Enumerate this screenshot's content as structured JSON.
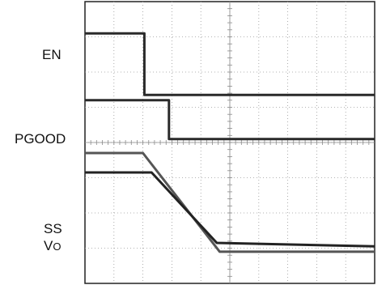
{
  "chart_data": {
    "type": "line",
    "title": "",
    "xlabel": "",
    "ylabel": "",
    "grid": true,
    "x_divisions": 10,
    "y_divisions": 8,
    "channel_labels": [
      {
        "id": "en",
        "text": "EN"
      },
      {
        "id": "pgood",
        "text": "PGOOD"
      },
      {
        "id": "ss",
        "text": "SS"
      },
      {
        "id": "vo",
        "text": "V",
        "sub": "O"
      }
    ],
    "series": [
      {
        "name": "EN",
        "color": "#2a2a2a",
        "points": [
          [
            0,
            7.1
          ],
          [
            2.05,
            7.1
          ],
          [
            2.05,
            5.35
          ],
          [
            10,
            5.35
          ]
        ]
      },
      {
        "name": "PGOOD",
        "color": "#2a2a2a",
        "points": [
          [
            0,
            5.2
          ],
          [
            2.9,
            5.2
          ],
          [
            2.9,
            4.1
          ],
          [
            10,
            4.1
          ]
        ]
      },
      {
        "name": "SS",
        "color": "#555555",
        "points": [
          [
            0,
            3.7
          ],
          [
            2.0,
            3.7
          ],
          [
            4.65,
            0.9
          ],
          [
            10,
            0.9
          ]
        ]
      },
      {
        "name": "Vo",
        "color": "#222222",
        "points": [
          [
            0,
            3.15
          ],
          [
            2.3,
            3.15
          ],
          [
            4.55,
            1.15
          ],
          [
            10,
            1.05
          ]
        ]
      }
    ]
  }
}
